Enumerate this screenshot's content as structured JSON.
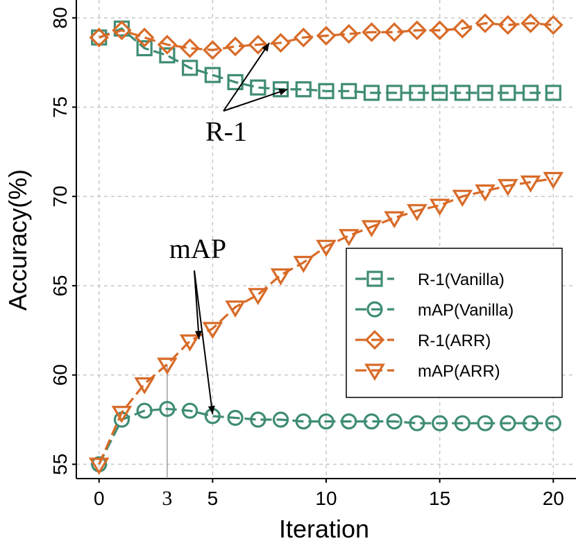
{
  "chart_data": {
    "type": "line",
    "xlabel": "Iteration",
    "ylabel": "Accuracy(%)",
    "xlim": [
      -1,
      21
    ],
    "ylim": [
      54.2,
      81
    ],
    "x_ticks": [
      0,
      5,
      10,
      15,
      20
    ],
    "y_ticks": [
      55,
      60,
      65,
      70,
      75,
      80
    ],
    "grid": true,
    "legend_position": "center-right",
    "x": [
      0,
      1,
      2,
      3,
      4,
      5,
      6,
      7,
      8,
      9,
      10,
      11,
      12,
      13,
      14,
      15,
      16,
      17,
      18,
      19,
      20
    ],
    "series": [
      {
        "name": "R-1(Vanilla)",
        "color": "#3f8c75",
        "marker": "square",
        "values": [
          78.9,
          79.4,
          78.3,
          77.9,
          77.2,
          76.8,
          76.4,
          76.1,
          76.0,
          76.0,
          75.9,
          75.9,
          75.8,
          75.8,
          75.8,
          75.8,
          75.8,
          75.8,
          75.8,
          75.8,
          75.8
        ]
      },
      {
        "name": "mAP(Vanilla)",
        "color": "#3f8c75",
        "marker": "circle",
        "values": [
          55.0,
          57.5,
          58.0,
          58.1,
          58.0,
          57.7,
          57.6,
          57.5,
          57.5,
          57.4,
          57.4,
          57.4,
          57.4,
          57.4,
          57.3,
          57.3,
          57.3,
          57.3,
          57.3,
          57.3,
          57.3
        ]
      },
      {
        "name": "R-1(ARR)",
        "color": "#d86b28",
        "marker": "diamond",
        "values": [
          78.9,
          79.3,
          78.9,
          78.5,
          78.3,
          78.2,
          78.4,
          78.5,
          78.6,
          78.9,
          79.0,
          79.1,
          79.2,
          79.2,
          79.3,
          79.3,
          79.4,
          79.7,
          79.6,
          79.7,
          79.6
        ]
      },
      {
        "name": "mAP(ARR)",
        "color": "#d86b28",
        "marker": "triangle-down",
        "values": [
          55.0,
          57.9,
          59.5,
          60.6,
          61.9,
          62.6,
          63.8,
          64.5,
          65.6,
          66.3,
          67.2,
          67.8,
          68.3,
          68.8,
          69.2,
          69.5,
          70.0,
          70.3,
          70.6,
          70.8,
          71.0
        ]
      }
    ],
    "annotations": [
      {
        "text": "R-1",
        "arrow_targets": [
          [
            7.5,
            78.6
          ],
          [
            8.3,
            76.0
          ]
        ]
      },
      {
        "text": "mAP",
        "arrow_targets": [
          [
            4.4,
            62.0
          ],
          [
            5.0,
            57.8
          ]
        ]
      }
    ],
    "reference_line": {
      "x": 3,
      "y": 60.6,
      "label": "3"
    }
  }
}
